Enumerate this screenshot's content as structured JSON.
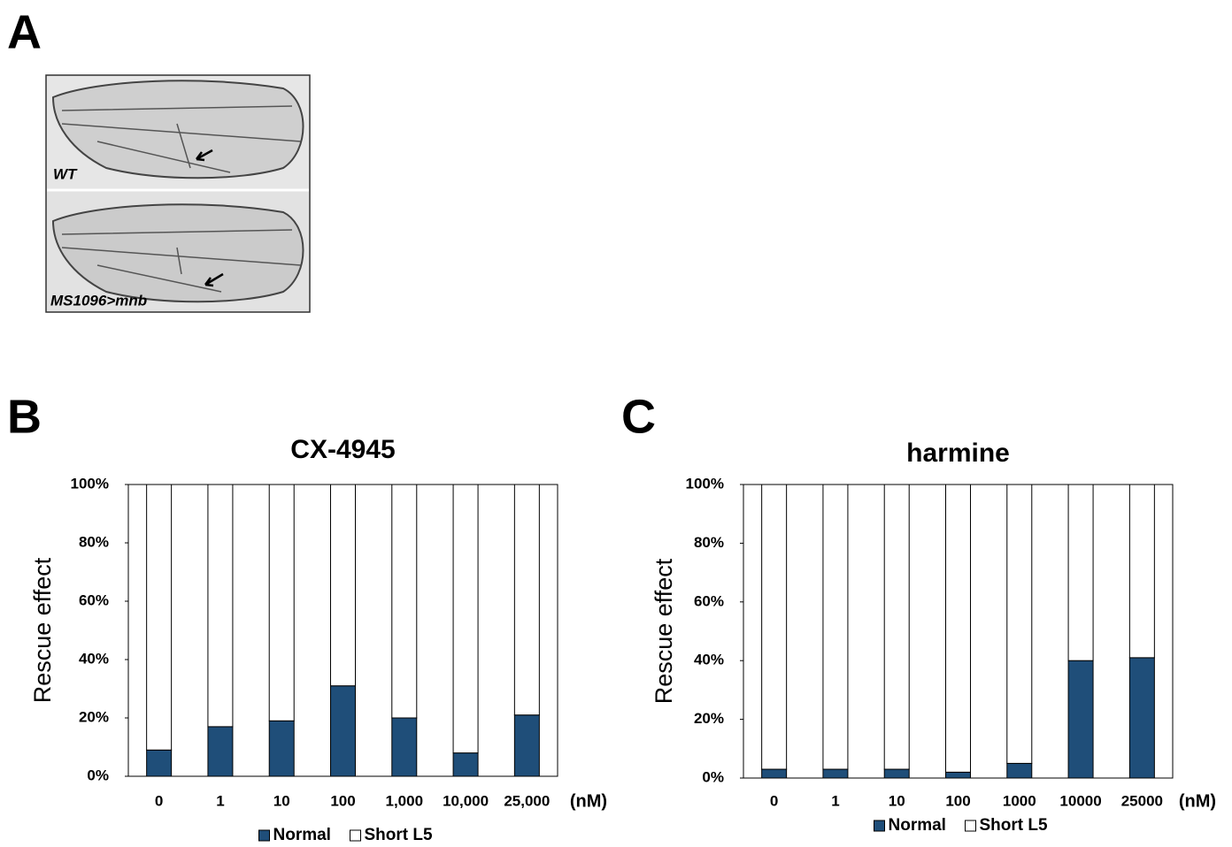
{
  "panels": {
    "A": "A",
    "B": "B",
    "C": "C"
  },
  "images": {
    "top_label": "WT",
    "bottom_label": "MS1096>mnb"
  },
  "chart_data": [
    {
      "type": "bar",
      "stacked": true,
      "title": "CX-4945",
      "y_label": "Rescue effect",
      "x_unit": "(nM)",
      "categories": [
        "0",
        "1",
        "10",
        "100",
        "1,000",
        "10,000",
        "25,000"
      ],
      "series": [
        {
          "name": "Normal",
          "color": "#1f4e79",
          "values": [
            9,
            17,
            19,
            31,
            20,
            8,
            21
          ]
        },
        {
          "name": "Short L5",
          "color": "#ffffff",
          "values": [
            91,
            83,
            81,
            69,
            80,
            92,
            79
          ]
        }
      ],
      "ylim": [
        0,
        100
      ],
      "yticks": [
        {
          "value": 0,
          "label": "0%"
        },
        {
          "value": 20,
          "label": "20%"
        },
        {
          "value": 40,
          "label": "40%"
        },
        {
          "value": 60,
          "label": "60%"
        },
        {
          "value": 80,
          "label": "80%"
        },
        {
          "value": 100,
          "label": "100%"
        }
      ],
      "grid": false
    },
    {
      "type": "bar",
      "stacked": true,
      "title": "harmine",
      "y_label": "Rescue effect",
      "x_unit": "(nM)",
      "categories": [
        "0",
        "1",
        "10",
        "100",
        "1000",
        "10000",
        "25000"
      ],
      "series": [
        {
          "name": "Normal",
          "color": "#1f4e79",
          "values": [
            3,
            3,
            3,
            2,
            5,
            40,
            41
          ]
        },
        {
          "name": "Short L5",
          "color": "#ffffff",
          "values": [
            97,
            97,
            97,
            98,
            95,
            60,
            59
          ]
        }
      ],
      "ylim": [
        0,
        100
      ],
      "yticks": [
        {
          "value": 0,
          "label": "0%"
        },
        {
          "value": 20,
          "label": "20%"
        },
        {
          "value": 40,
          "label": "40%"
        },
        {
          "value": 60,
          "label": "60%"
        },
        {
          "value": 80,
          "label": "80%"
        },
        {
          "value": 100,
          "label": "100%"
        }
      ],
      "grid": false
    }
  ]
}
